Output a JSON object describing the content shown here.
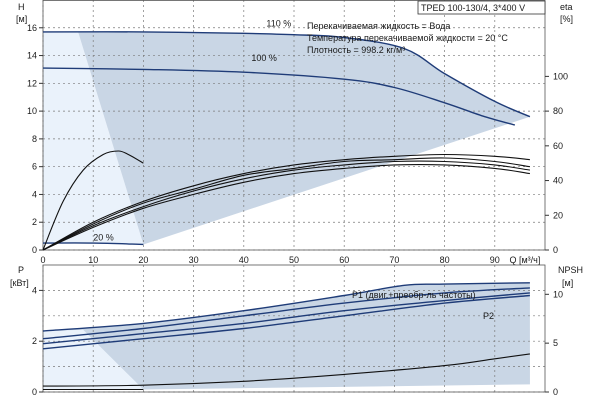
{
  "chart_data": {
    "type": "line",
    "header": {
      "model": "TPED 100-130/4, 3*400 V",
      "info_lines": [
        "Перекачиваемая жидкость = Вода",
        "Температура перекачиваемой жидкости = 20 °C",
        "Плотность = 998.2 кг/м³"
      ]
    },
    "x_axis": {
      "label": "Q [м³/ч]",
      "range": [
        0,
        100
      ],
      "ticks": [
        0,
        10,
        20,
        30,
        40,
        50,
        60,
        70,
        80,
        90
      ]
    },
    "top_panel": {
      "y_left": {
        "label_top": "H",
        "label_bottom": "[м]",
        "range": [
          0,
          18
        ],
        "ticks": [
          0,
          2,
          4,
          6,
          8,
          10,
          12,
          14,
          16
        ]
      },
      "y_right": {
        "label_top": "eta",
        "label_bottom": "[%]",
        "range": [
          0,
          144
        ],
        "ticks": [
          0,
          20,
          40,
          60,
          80,
          100
        ]
      },
      "head_curves": [
        {
          "label": "110 %",
          "x": [
            0,
            20,
            40,
            50,
            60,
            72,
            80,
            90,
            97
          ],
          "y": [
            15.7,
            15.7,
            15.6,
            15.5,
            15.3,
            14.5,
            12.7,
            10.7,
            9.6
          ]
        },
        {
          "label": "100 %",
          "x": [
            0,
            20,
            40,
            60,
            70,
            80,
            88,
            94
          ],
          "y": [
            13.1,
            13.0,
            12.8,
            12.3,
            11.7,
            10.6,
            9.6,
            9.0
          ]
        },
        {
          "label": "20 %",
          "x": [
            0,
            10,
            20
          ],
          "y": [
            0.5,
            0.5,
            0.4
          ]
        }
      ],
      "eta_curves": [
        {
          "x": [
            0,
            10,
            20,
            30,
            40,
            50,
            60,
            70,
            80,
            90,
            97
          ],
          "y": [
            0,
            16,
            28,
            37,
            44,
            49,
            52,
            54,
            55,
            54,
            52
          ]
        },
        {
          "x": [
            0,
            10,
            20,
            30,
            40,
            50,
            60,
            70,
            80,
            90,
            97
          ],
          "y": [
            0,
            15,
            27,
            35,
            43,
            47,
            51,
            52,
            53,
            51,
            48
          ]
        },
        {
          "x": [
            0,
            10,
            20,
            30,
            40,
            50,
            60,
            70,
            80,
            90,
            97
          ],
          "y": [
            0,
            14,
            25,
            34,
            41,
            46,
            49,
            51,
            51,
            49,
            46
          ]
        },
        {
          "x": [
            0,
            10,
            20,
            30,
            40,
            50,
            60,
            70,
            80,
            90,
            97
          ],
          "y": [
            0,
            13,
            24,
            32,
            39,
            44,
            47,
            49,
            49,
            47,
            44
          ]
        },
        {
          "x": [
            0,
            4,
            8,
            12,
            15,
            17,
            20
          ],
          "y": [
            0,
            28,
            46,
            55,
            57,
            55,
            50
          ]
        }
      ]
    },
    "bottom_panel": {
      "y_left": {
        "label_top": "P",
        "label_bottom": "[кВт]",
        "range": [
          0,
          5
        ],
        "ticks": [
          0,
          2,
          4
        ]
      },
      "y_right": {
        "label_top": "NPSH",
        "label_bottom": "[м]",
        "range": [
          0,
          13
        ],
        "ticks": [
          0,
          5,
          10
        ]
      },
      "series": [
        {
          "name": "P1 (двиг.+преобр-ль частоты)",
          "x": [
            0,
            20,
            40,
            60,
            72,
            80,
            97
          ],
          "y": [
            2.4,
            2.7,
            3.2,
            3.8,
            4.2,
            4.25,
            4.3
          ]
        },
        {
          "name": "",
          "x": [
            0,
            20,
            40,
            60,
            80,
            97
          ],
          "y": [
            2.1,
            2.5,
            3.0,
            3.5,
            3.9,
            4.1
          ]
        },
        {
          "name": "",
          "x": [
            0,
            20,
            40,
            60,
            80,
            97
          ],
          "y": [
            1.9,
            2.3,
            2.7,
            3.2,
            3.6,
            3.9
          ]
        },
        {
          "name": "P2",
          "x": [
            0,
            20,
            40,
            60,
            80,
            97
          ],
          "y": [
            1.7,
            2.1,
            2.5,
            3.0,
            3.5,
            3.8
          ]
        }
      ],
      "npsh": {
        "x": [
          0,
          20,
          40,
          60,
          80,
          90,
          97
        ],
        "y": [
          0.6,
          0.7,
          1.1,
          1.8,
          2.7,
          3.4,
          3.9
        ]
      },
      "p_min_curve": {
        "x": [
          0,
          10,
          20
        ],
        "y": [
          0.1,
          0.1,
          0.1
        ]
      }
    },
    "grid": true
  }
}
